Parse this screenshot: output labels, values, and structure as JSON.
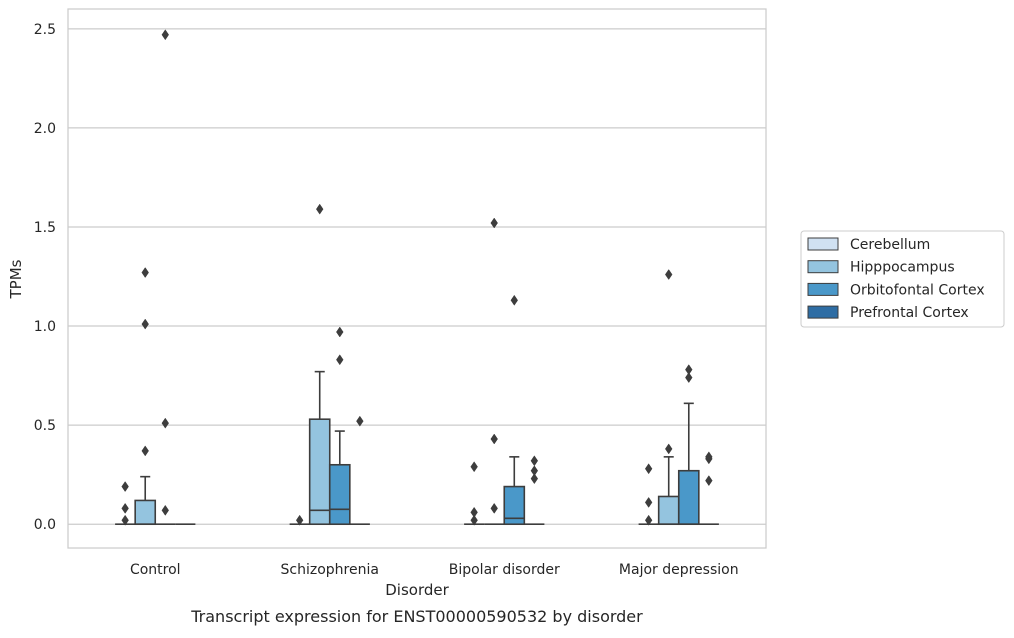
{
  "chart_data": {
    "type": "boxplot",
    "xlabel": "Disorder",
    "ylabel": "TPMs",
    "caption": "Transcript expression for ENST00000590532 by disorder",
    "ylim": [
      -0.12,
      2.6
    ],
    "yticks": [
      0.0,
      0.5,
      1.0,
      1.5,
      2.0,
      2.5
    ],
    "ytick_labels": [
      "0.0",
      "0.5",
      "1.0",
      "1.5",
      "2.0",
      "2.5"
    ],
    "grid": "horizontal",
    "legend_position": "right",
    "categories": [
      "Control",
      "Schizophrenia",
      "Bipolar disorder",
      "Major depression"
    ],
    "series": [
      {
        "name": "Cerebellum",
        "color": "#d0e1f2",
        "boxes": [
          {
            "q1": 0,
            "median": 0,
            "q3": 0,
            "whisker_low": 0,
            "whisker_high": 0,
            "outliers": [
              0.02,
              0.08,
              0.19
            ]
          },
          {
            "q1": 0,
            "median": 0,
            "q3": 0,
            "whisker_low": 0,
            "whisker_high": 0,
            "outliers": [
              0.02
            ]
          },
          {
            "q1": 0,
            "median": 0,
            "q3": 0,
            "whisker_low": 0,
            "whisker_high": 0,
            "outliers": [
              0.02,
              0.06,
              0.29
            ]
          },
          {
            "q1": 0,
            "median": 0,
            "q3": 0,
            "whisker_low": 0,
            "whisker_high": 0,
            "outliers": [
              0.02,
              0.11,
              0.28
            ]
          }
        ]
      },
      {
        "name": "Hipppocampus",
        "color": "#94c4df",
        "boxes": [
          {
            "q1": 0,
            "median": 0,
            "q3": 0.12,
            "whisker_low": 0,
            "whisker_high": 0.24,
            "outliers": [
              0.37,
              1.01,
              1.27
            ]
          },
          {
            "q1": 0,
            "median": 0.07,
            "q3": 0.53,
            "whisker_low": 0,
            "whisker_high": 0.77,
            "outliers": [
              1.59
            ]
          },
          {
            "q1": 0,
            "median": 0,
            "q3": 0,
            "whisker_low": 0,
            "whisker_high": 0,
            "outliers": [
              0.08,
              0.43,
              1.52
            ]
          },
          {
            "q1": 0,
            "median": 0,
            "q3": 0.14,
            "whisker_low": 0,
            "whisker_high": 0.34,
            "outliers": [
              0.38,
              1.26
            ]
          }
        ]
      },
      {
        "name": "Orbitofontal Cortex",
        "color": "#4a98c9",
        "boxes": [
          {
            "q1": 0,
            "median": 0,
            "q3": 0,
            "whisker_low": 0,
            "whisker_high": 0,
            "outliers": [
              0.07,
              0.51,
              2.47
            ]
          },
          {
            "q1": 0,
            "median": 0.075,
            "q3": 0.3,
            "whisker_low": 0,
            "whisker_high": 0.47,
            "outliers": [
              0.83,
              0.97
            ]
          },
          {
            "q1": 0,
            "median": 0.03,
            "q3": 0.19,
            "whisker_low": 0,
            "whisker_high": 0.34,
            "outliers": [
              1.13
            ]
          },
          {
            "q1": 0,
            "median": 0,
            "q3": 0.27,
            "whisker_low": 0,
            "whisker_high": 0.61,
            "outliers": [
              0.74,
              0.78
            ]
          }
        ]
      },
      {
        "name": "Prefrontal Cortex",
        "color": "#2e6da4",
        "boxes": [
          {
            "q1": 0,
            "median": 0,
            "q3": 0,
            "whisker_low": 0,
            "whisker_high": 0,
            "outliers": []
          },
          {
            "q1": 0,
            "median": 0,
            "q3": 0,
            "whisker_low": 0,
            "whisker_high": 0,
            "outliers": [
              0.52
            ]
          },
          {
            "q1": 0,
            "median": 0,
            "q3": 0,
            "whisker_low": 0,
            "whisker_high": 0,
            "outliers": [
              0.23,
              0.27,
              0.32
            ]
          },
          {
            "q1": 0,
            "median": 0,
            "q3": 0,
            "whisker_low": 0,
            "whisker_high": 0,
            "outliers": [
              0.22,
              0.33,
              0.34
            ]
          }
        ]
      }
    ]
  }
}
